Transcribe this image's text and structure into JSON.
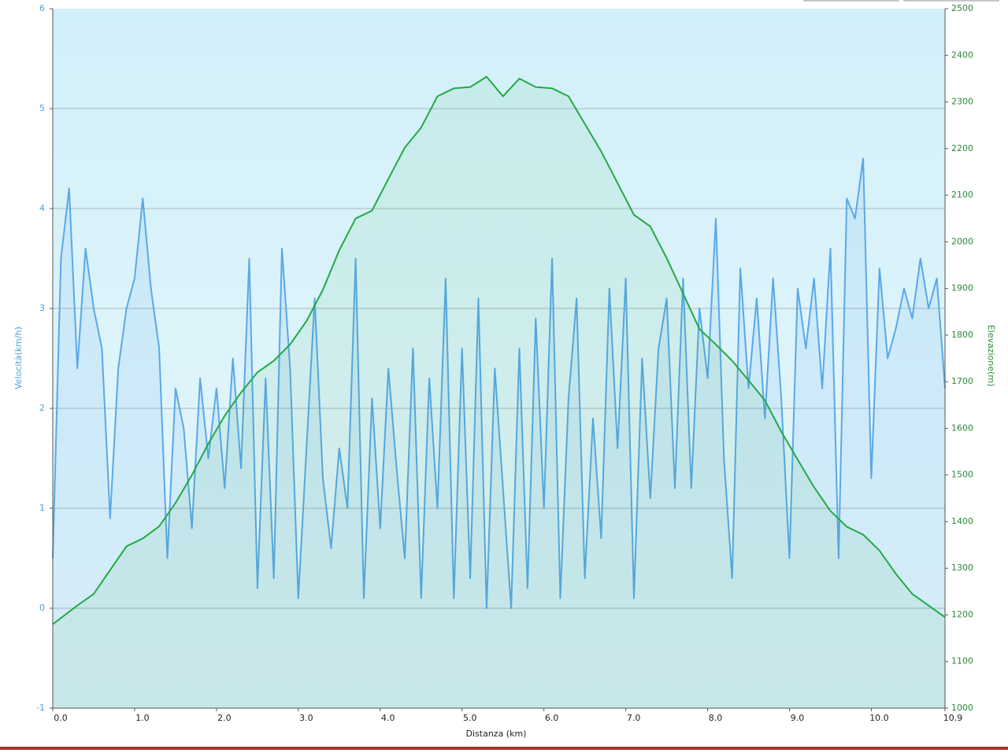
{
  "chart_data": {
    "type": "line",
    "xlabel": "Distanza  (km)",
    "ylabel": "Velocità(km/h)",
    "y2label": "Elevazione(m)",
    "xlim": [
      0,
      10.9
    ],
    "xticks": [
      {
        "value": 0,
        "label": "0.0"
      },
      {
        "value": 1,
        "label": "1.0"
      },
      {
        "value": 2,
        "label": "2.0"
      },
      {
        "value": 3,
        "label": "3.0"
      },
      {
        "value": 4,
        "label": "4.0"
      },
      {
        "value": 5,
        "label": "5.0"
      },
      {
        "value": 6,
        "label": "6.0"
      },
      {
        "value": 7,
        "label": "7.0"
      },
      {
        "value": 8,
        "label": "8.0"
      },
      {
        "value": 9,
        "label": "9.0"
      },
      {
        "value": 10,
        "label": "10.0"
      },
      10.9
    ],
    "ylim": [
      -1,
      6
    ],
    "yticks": [
      -1,
      0,
      1,
      2,
      3,
      4,
      5,
      6
    ],
    "y2lim": [
      1000,
      2500
    ],
    "y2ticks": [
      1000,
      1100,
      1200,
      1300,
      1400,
      1500,
      1600,
      1700,
      1800,
      1900,
      2000,
      2100,
      2200,
      2300,
      2400,
      2500
    ],
    "grid": true,
    "series": [
      {
        "color": "#5aa8e8",
        "axis": "y",
        "x": [
          0,
          0.1,
          0.2,
          0.3,
          0.4,
          0.5,
          0.6,
          0.7,
          0.8,
          0.9,
          1,
          1.1,
          1.2,
          1.3,
          1.4,
          1.5,
          1.6,
          1.7,
          1.8,
          1.9,
          2,
          2.1,
          2.2,
          2.3,
          2.4,
          2.5,
          2.6,
          2.7,
          2.8,
          2.9,
          3,
          3.1,
          3.2,
          3.3,
          3.4,
          3.5,
          3.6,
          3.7,
          3.8,
          3.9,
          4,
          4.1,
          4.2,
          4.3,
          4.4,
          4.5,
          4.6,
          4.7,
          4.8,
          4.9,
          5,
          5.1,
          5.2,
          5.3,
          5.4,
          5.5,
          5.6,
          5.7,
          5.8,
          5.9,
          6,
          6.1,
          6.2,
          6.3,
          6.4,
          6.5,
          6.6,
          6.7,
          6.8,
          6.9,
          7,
          7.1,
          7.2,
          7.3,
          7.4,
          7.5,
          7.6,
          7.7,
          7.8,
          7.9,
          8,
          8.1,
          8.2,
          8.3,
          8.4,
          8.5,
          8.6,
          8.7,
          8.8,
          8.9,
          9,
          9.1,
          9.2,
          9.3,
          9.4,
          9.5,
          9.6,
          9.7,
          9.8,
          9.9,
          10,
          10.1,
          10.2,
          10.3,
          10.4,
          10.5,
          10.6,
          10.7,
          10.8,
          10.9
        ],
        "values": [
          0.5,
          3.5,
          4.2,
          2.4,
          3.6,
          3.0,
          2.6,
          0.9,
          2.4,
          3.0,
          3.3,
          4.1,
          3.2,
          2.6,
          0.5,
          2.2,
          1.8,
          0.8,
          2.3,
          1.5,
          2.2,
          1.2,
          2.5,
          1.4,
          3.5,
          0.2,
          2.3,
          0.3,
          3.6,
          2.4,
          0.1,
          1.6,
          3.1,
          1.3,
          0.6,
          1.6,
          1.0,
          3.5,
          0.1,
          2.1,
          0.8,
          2.4,
          1.4,
          0.5,
          2.6,
          0.1,
          2.3,
          1.0,
          3.3,
          0.1,
          2.6,
          0.3,
          3.1,
          0.0,
          2.4,
          1.2,
          0.0,
          2.6,
          0.2,
          2.9,
          1.0,
          3.5,
          0.1,
          2.1,
          3.1,
          0.3,
          1.9,
          0.7,
          3.2,
          1.6,
          3.3,
          0.1,
          2.5,
          1.1,
          2.6,
          3.1,
          1.2,
          3.3,
          1.2,
          3.0,
          2.3,
          3.9,
          1.5,
          0.3,
          3.4,
          2.2,
          3.1,
          1.9,
          3.3,
          2.1,
          0.5,
          3.2,
          2.6,
          3.3,
          2.2,
          3.6,
          0.5,
          4.1,
          3.9,
          4.5,
          1.3,
          3.4,
          2.5,
          2.8,
          3.2,
          2.9,
          3.5,
          3.0,
          3.3,
          2.2
        ]
      },
      {
        "color": "#22aa44",
        "axis": "y2",
        "x": [
          0,
          0.3,
          0.5,
          0.7,
          0.9,
          1.1,
          1.3,
          1.5,
          1.7,
          1.9,
          2.1,
          2.3,
          2.5,
          2.7,
          2.9,
          3.1,
          3.3,
          3.5,
          3.7,
          3.9,
          4.1,
          4.3,
          4.5,
          4.7,
          4.9,
          5.1,
          5.3,
          5.5,
          5.7,
          5.9,
          6.1,
          6.3,
          6.5,
          6.7,
          6.9,
          7.1,
          7.3,
          7.5,
          7.7,
          7.9,
          8.1,
          8.3,
          8.5,
          8.7,
          8.9,
          9.1,
          9.3,
          9.5,
          9.7,
          9.9,
          10.1,
          10.3,
          10.5,
          10.7,
          10.9
        ],
        "values": [
          1180,
          1220,
          1245,
          1296,
          1347,
          1364,
          1390,
          1440,
          1500,
          1567,
          1627,
          1677,
          1720,
          1745,
          1780,
          1830,
          1897,
          1982,
          2050,
          2067,
          2135,
          2202,
          2245,
          2312,
          2329,
          2332,
          2354,
          2312,
          2350,
          2332,
          2329,
          2312,
          2253,
          2194,
          2126,
          2058,
          2033,
          1965,
          1889,
          1813,
          1780,
          1745,
          1703,
          1660,
          1593,
          1533,
          1474,
          1423,
          1389,
          1372,
          1338,
          1288,
          1245,
          1220,
          1195
        ]
      }
    ]
  }
}
